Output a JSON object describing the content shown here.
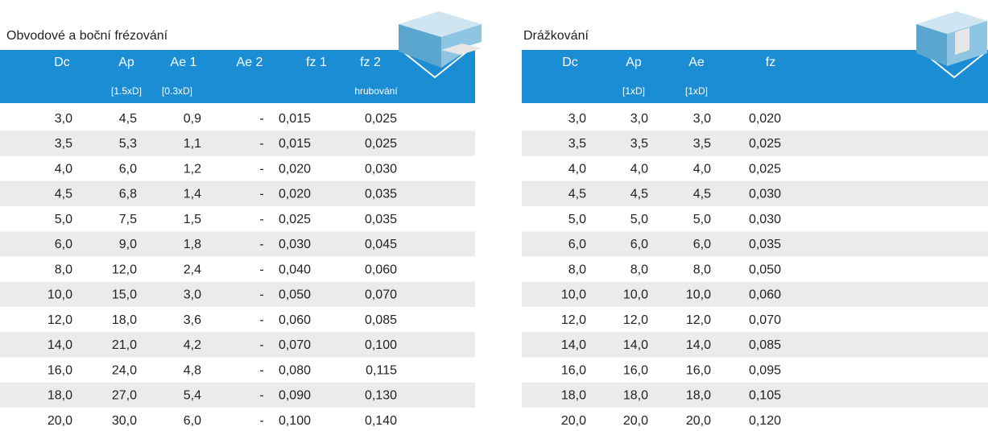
{
  "tables": [
    {
      "title": "Obvodové a boční frézování",
      "headers": [
        {
          "label": "Dc"
        },
        {
          "label": "Ap",
          "sub": "[1.5xD]"
        },
        {
          "label": "Ae 1",
          "sub": "[0.3xD]"
        },
        {
          "label": "Ae 2"
        },
        {
          "label": "fz 1"
        },
        {
          "label": "fz 2",
          "sub": "hrubování"
        }
      ],
      "rows": [
        [
          "3,0",
          "4,5",
          "0,9",
          "-",
          "0,015",
          "0,025"
        ],
        [
          "3,5",
          "5,3",
          "1,1",
          "-",
          "0,015",
          "0,025"
        ],
        [
          "4,0",
          "6,0",
          "1,2",
          "-",
          "0,020",
          "0,030"
        ],
        [
          "4,5",
          "6,8",
          "1,4",
          "-",
          "0,020",
          "0,035"
        ],
        [
          "5,0",
          "7,5",
          "1,5",
          "-",
          "0,025",
          "0,035"
        ],
        [
          "6,0",
          "9,0",
          "1,8",
          "-",
          "0,030",
          "0,045"
        ],
        [
          "8,0",
          "12,0",
          "2,4",
          "-",
          "0,040",
          "0,060"
        ],
        [
          "10,0",
          "15,0",
          "3,0",
          "-",
          "0,050",
          "0,070"
        ],
        [
          "12,0",
          "18,0",
          "3,6",
          "-",
          "0,060",
          "0,085"
        ],
        [
          "14,0",
          "21,0",
          "4,2",
          "-",
          "0,070",
          "0,100"
        ],
        [
          "16,0",
          "24,0",
          "4,8",
          "-",
          "0,080",
          "0,115"
        ],
        [
          "18,0",
          "27,0",
          "5,4",
          "-",
          "0,090",
          "0,130"
        ],
        [
          "20,0",
          "30,0",
          "6,0",
          "-",
          "0,100",
          "0,140"
        ]
      ]
    },
    {
      "title": "Drážkování",
      "headers": [
        {
          "label": "Dc"
        },
        {
          "label": "Ap",
          "sub": "[1xD]"
        },
        {
          "label": "Ae",
          "sub": "[1xD]"
        },
        {
          "label": "fz"
        }
      ],
      "rows": [
        [
          "3,0",
          "3,0",
          "3,0",
          "0,020"
        ],
        [
          "3,5",
          "3,5",
          "3,5",
          "0,025"
        ],
        [
          "4,0",
          "4,0",
          "4,0",
          "0,025"
        ],
        [
          "4,5",
          "4,5",
          "4,5",
          "0,030"
        ],
        [
          "5,0",
          "5,0",
          "5,0",
          "0,030"
        ],
        [
          "6,0",
          "6,0",
          "6,0",
          "0,035"
        ],
        [
          "8,0",
          "8,0",
          "8,0",
          "0,050"
        ],
        [
          "10,0",
          "10,0",
          "10,0",
          "0,060"
        ],
        [
          "12,0",
          "12,0",
          "12,0",
          "0,070"
        ],
        [
          "14,0",
          "14,0",
          "14,0",
          "0,085"
        ],
        [
          "16,0",
          "16,0",
          "16,0",
          "0,095"
        ],
        [
          "18,0",
          "18,0",
          "18,0",
          "0,105"
        ],
        [
          "20,0",
          "20,0",
          "20,0",
          "0,120"
        ]
      ]
    }
  ]
}
